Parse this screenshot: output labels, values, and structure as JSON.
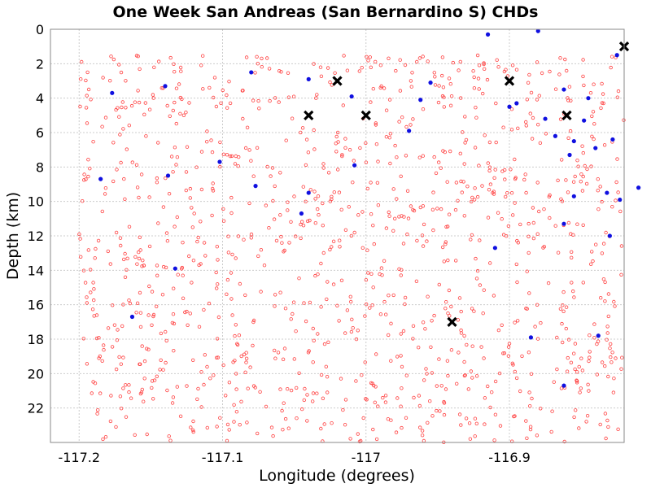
{
  "chart_data": {
    "type": "scatter",
    "title": "One Week San Andreas (San Bernardino S) CHDs",
    "xlabel": "Longitude (degrees)",
    "ylabel": "Depth (km)",
    "xlim": [
      -117.22,
      -116.82
    ],
    "ylim": [
      24,
      0
    ],
    "y_inverted": true,
    "grid": true,
    "x_ticks": [
      -117.2,
      -117.1,
      -117.0,
      -116.9
    ],
    "x_tick_labels": [
      "-117.2",
      "-117.1",
      "-117",
      "-116.9"
    ],
    "y_ticks": [
      0,
      2,
      4,
      6,
      8,
      10,
      12,
      14,
      16,
      18,
      20,
      22
    ],
    "y_tick_labels": [
      "0",
      "2",
      "4",
      "6",
      "8",
      "10",
      "12",
      "14",
      "16",
      "18",
      "20",
      "22"
    ],
    "colors": {
      "background_points": "#ff4040",
      "blue_points": "#1010e0",
      "x_markers": "#000000",
      "grid": "#cccccc"
    },
    "background_scatter": {
      "count": 1200,
      "x_range": [
        -117.2,
        -116.82
      ],
      "y_range": [
        1.5,
        24
      ],
      "marker": "hollow-circle"
    },
    "series": [
      {
        "marker": "filled-circle",
        "points": [
          [
            -117.185,
            8.7
          ],
          [
            -117.177,
            3.7
          ],
          [
            -117.163,
            16.7
          ],
          [
            -117.14,
            3.3
          ],
          [
            -117.138,
            8.5
          ],
          [
            -117.133,
            13.9
          ],
          [
            -117.102,
            7.7
          ],
          [
            -117.08,
            2.5
          ],
          [
            -117.077,
            9.1
          ],
          [
            -117.04,
            2.9
          ],
          [
            -117.045,
            10.7
          ],
          [
            -117.04,
            9.5
          ],
          [
            -117.01,
            3.9
          ],
          [
            -117.008,
            7.9
          ],
          [
            -116.97,
            5.9
          ],
          [
            -116.962,
            4.1
          ],
          [
            -116.955,
            3.1
          ],
          [
            -116.915,
            0.3
          ],
          [
            -116.91,
            12.7
          ],
          [
            -116.9,
            4.5
          ],
          [
            -116.895,
            4.3
          ],
          [
            -116.885,
            17.9
          ],
          [
            -116.88,
            0.1
          ],
          [
            -116.875,
            5.2
          ],
          [
            -116.862,
            3.5
          ],
          [
            -116.868,
            6.2
          ],
          [
            -116.862,
            11.3
          ],
          [
            -116.858,
            7.3
          ],
          [
            -116.855,
            6.5
          ],
          [
            -116.848,
            5.3
          ],
          [
            -116.845,
            4.0
          ],
          [
            -116.862,
            20.7
          ],
          [
            -116.855,
            9.7
          ],
          [
            -116.84,
            6.9
          ],
          [
            -116.838,
            17.8
          ],
          [
            -116.832,
            9.5
          ],
          [
            -116.83,
            12.0
          ],
          [
            -116.828,
            6.4
          ],
          [
            -116.825,
            1.5
          ],
          [
            -116.81,
            9.2
          ],
          [
            -116.823,
            9.9
          ]
        ]
      },
      {
        "marker": "x-mark",
        "points": [
          [
            -117.02,
            3.0
          ],
          [
            -117.04,
            5.0
          ],
          [
            -117.0,
            5.0
          ],
          [
            -116.94,
            17.0
          ],
          [
            -116.9,
            3.0
          ],
          [
            -116.86,
            5.0
          ],
          [
            -116.82,
            1.0
          ]
        ]
      }
    ]
  }
}
